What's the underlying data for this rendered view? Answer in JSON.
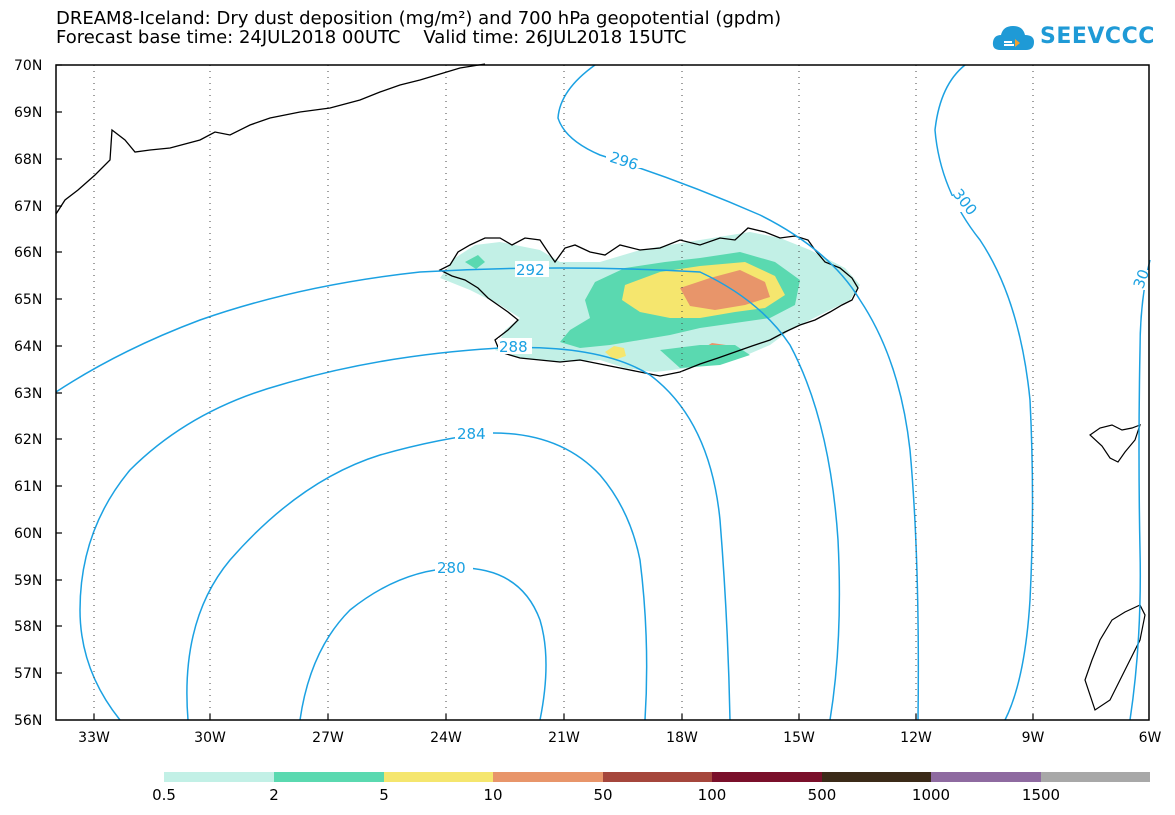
{
  "header": {
    "title_line1": "DREAM8-Iceland: Dry dust deposition (mg/m²) and 700 hPa geopotential (gpdm)",
    "title_line2": "Forecast base time: 24JUL2018 00UTC    Valid time: 26JUL2018 15UTC",
    "logo_text": "SEEVCCC"
  },
  "map": {
    "lat_labels": [
      "70N",
      "69N",
      "68N",
      "67N",
      "66N",
      "65N",
      "64N",
      "63N",
      "62N",
      "61N",
      "60N",
      "59N",
      "58N",
      "57N",
      "56N"
    ],
    "lon_labels": [
      "33W",
      "30W",
      "27W",
      "24W",
      "21W",
      "18W",
      "15W",
      "12W",
      "9W",
      "6W"
    ],
    "contour_labels": [
      "296",
      "300",
      "30",
      "292",
      "288",
      "284",
      "280"
    ],
    "colors": {
      "contour": "#1ba1e2",
      "coast": "#000000"
    }
  },
  "legend": {
    "labels": [
      "0.5",
      "2",
      "5",
      "10",
      "50",
      "100",
      "500",
      "1000",
      "1500"
    ],
    "colors": [
      "#c2f0e6",
      "#5ad9b0",
      "#f5e66e",
      "#e8956a",
      "#a5463c",
      "#7a0f2a",
      "#3b2a18",
      "#8e6aa0",
      "#a8a8a8"
    ]
  }
}
